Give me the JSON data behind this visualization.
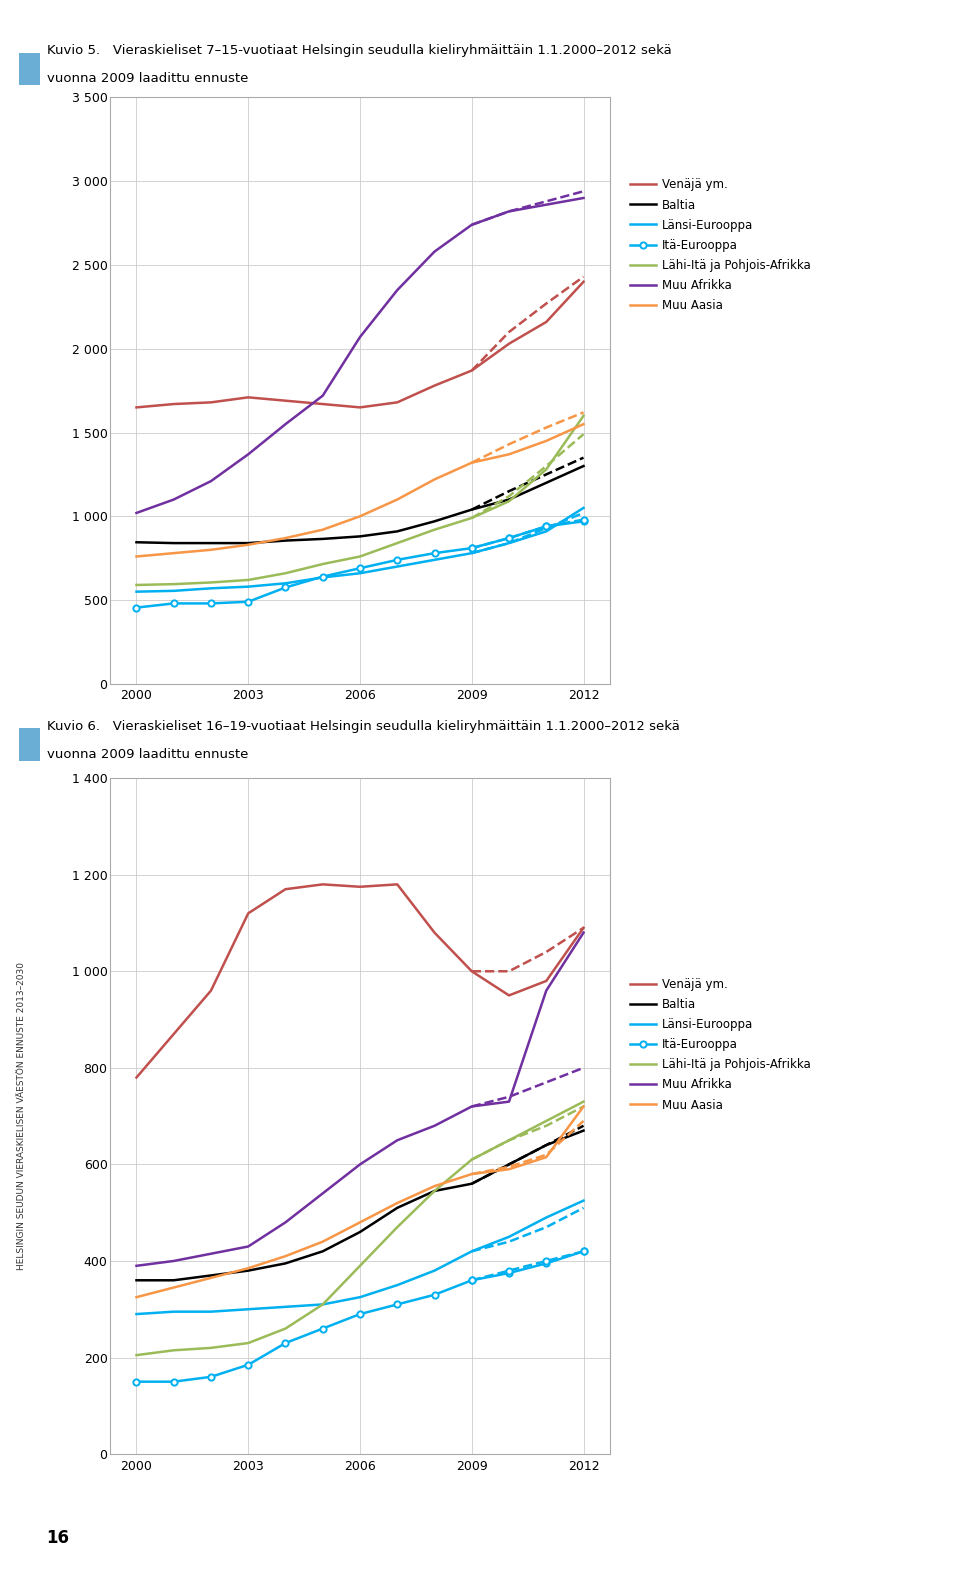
{
  "chart1": {
    "title_box_color": "#6aaed6",
    "title_line1": "Kuvio 5.   Vieraskieliset 7–15-vuotiaat Helsingin seudulla kieliryhmäittäin 1.1.2000–2012 sekä",
    "title_line2": "vuonna 2009 laadittu ennuste",
    "ylim": [
      0,
      3500
    ],
    "yticks": [
      0,
      500,
      1000,
      1500,
      2000,
      2500,
      3000,
      3500
    ],
    "xticks": [
      2000,
      2003,
      2006,
      2009,
      2012
    ],
    "years_actual": [
      2000,
      2001,
      2002,
      2003,
      2004,
      2005,
      2006,
      2007,
      2008,
      2009,
      2010,
      2011,
      2012
    ],
    "years_forecast": [
      2009,
      2010,
      2011,
      2012
    ],
    "series": {
      "Venäjä ym.": {
        "color": "#c0504d",
        "actual": [
          1650,
          1670,
          1680,
          1710,
          1690,
          1670,
          1650,
          1680,
          1780,
          1870,
          2030,
          2160,
          2400
        ],
        "forecast": [
          1870,
          2100,
          2270,
          2430
        ]
      },
      "Baltia": {
        "color": "#000000",
        "actual": [
          845,
          840,
          840,
          840,
          855,
          865,
          880,
          910,
          970,
          1040,
          1100,
          1200,
          1300
        ],
        "forecast": [
          1040,
          1150,
          1250,
          1350
        ]
      },
      "Länsi-Eurooppa": {
        "color": "#00b0f0",
        "actual": [
          550,
          555,
          570,
          580,
          600,
          635,
          660,
          700,
          740,
          780,
          840,
          910,
          1050
        ],
        "forecast": [
          780,
          840,
          930,
          1020
        ]
      },
      "Itä-Eurooppa": {
        "color": "#00b0f0",
        "marker": "o",
        "actual": [
          455,
          480,
          480,
          490,
          575,
          640,
          690,
          740,
          780,
          810,
          870,
          940,
          970
        ],
        "forecast": [
          810,
          870,
          940,
          980
        ]
      },
      "Lähi-Itä ja Pohjois-Afrikka": {
        "color": "#9bbb59",
        "actual": [
          590,
          595,
          605,
          620,
          660,
          715,
          760,
          840,
          920,
          990,
          1090,
          1280,
          1600
        ],
        "forecast": [
          990,
          1120,
          1300,
          1490
        ]
      },
      "Muu Afrikka": {
        "color": "#7030a0",
        "actual": [
          1020,
          1100,
          1210,
          1370,
          1550,
          1720,
          2070,
          2350,
          2580,
          2740,
          2820,
          2860,
          2900
        ],
        "forecast": [
          2740,
          2820,
          2880,
          2940
        ]
      },
      "Muu Aasia": {
        "color": "#f79646",
        "actual": [
          760,
          780,
          800,
          830,
          870,
          920,
          1000,
          1100,
          1220,
          1320,
          1370,
          1450,
          1550
        ],
        "forecast": [
          1320,
          1430,
          1530,
          1620
        ]
      }
    }
  },
  "chart2": {
    "title_box_color": "#6aaed6",
    "title_line1": "Kuvio 6.   Vieraskieliset 16–19-vuotiaat Helsingin seudulla kieliryhmäittäin 1.1.2000–2012 sekä",
    "title_line2": "vuonna 2009 laadittu ennuste",
    "ylim": [
      0,
      1400
    ],
    "yticks": [
      0,
      200,
      400,
      600,
      800,
      1000,
      1200,
      1400
    ],
    "xticks": [
      2000,
      2003,
      2006,
      2009,
      2012
    ],
    "years_actual": [
      2000,
      2001,
      2002,
      2003,
      2004,
      2005,
      2006,
      2007,
      2008,
      2009,
      2010,
      2011,
      2012
    ],
    "years_forecast": [
      2009,
      2010,
      2011,
      2012
    ],
    "series": {
      "Venäjä ym.": {
        "color": "#c0504d",
        "actual": [
          780,
          870,
          960,
          1120,
          1170,
          1180,
          1175,
          1180,
          1080,
          1000,
          950,
          980,
          1090
        ],
        "forecast": [
          1000,
          1000,
          1040,
          1090
        ]
      },
      "Baltia": {
        "color": "#000000",
        "actual": [
          360,
          360,
          370,
          380,
          395,
          420,
          460,
          510,
          545,
          560,
          600,
          640,
          670
        ],
        "forecast": [
          560,
          600,
          640,
          680
        ]
      },
      "Länsi-Eurooppa": {
        "color": "#00b0f0",
        "actual": [
          290,
          295,
          295,
          300,
          305,
          310,
          325,
          350,
          380,
          420,
          450,
          490,
          525
        ],
        "forecast": [
          420,
          440,
          470,
          510
        ]
      },
      "Itä-Eurooppa": {
        "color": "#00b0f0",
        "marker": "o",
        "actual": [
          150,
          150,
          160,
          185,
          230,
          260,
          290,
          310,
          330,
          360,
          375,
          395,
          420
        ],
        "forecast": [
          360,
          380,
          400,
          420
        ]
      },
      "Lähi-Itä ja Pohjois-Afrikka": {
        "color": "#9bbb59",
        "actual": [
          205,
          215,
          220,
          230,
          260,
          310,
          390,
          470,
          545,
          610,
          650,
          690,
          730
        ],
        "forecast": [
          610,
          650,
          680,
          720
        ]
      },
      "Muu Afrikka": {
        "color": "#7030a0",
        "actual": [
          390,
          400,
          415,
          430,
          480,
          540,
          600,
          650,
          680,
          720,
          730,
          960,
          1080
        ],
        "forecast": [
          720,
          740,
          770,
          800
        ]
      },
      "Muu Aasia": {
        "color": "#f79646",
        "actual": [
          325,
          345,
          365,
          385,
          410,
          440,
          480,
          520,
          555,
          580,
          590,
          615,
          720
        ],
        "forecast": [
          580,
          595,
          620,
          690
        ]
      }
    }
  },
  "legend_labels": [
    "Venäjä ym.",
    "Baltia",
    "Länsi-Eurooppa",
    "Itä-Eurooppa",
    "Lähi-Itä ja Pohjois-Afrikka",
    "Muu Afrikka",
    "Muu Aasia"
  ],
  "side_text": "HELSINGIN SEUDUN VIERASKIELISEN VÄESTÖN ENNUSTE 2013–2030",
  "bottom_number": "16",
  "bg_color": "#ffffff",
  "grid_color": "#cccccc",
  "font_size_title": 9.5,
  "font_size_ticks": 9,
  "font_size_legend": 8.5
}
